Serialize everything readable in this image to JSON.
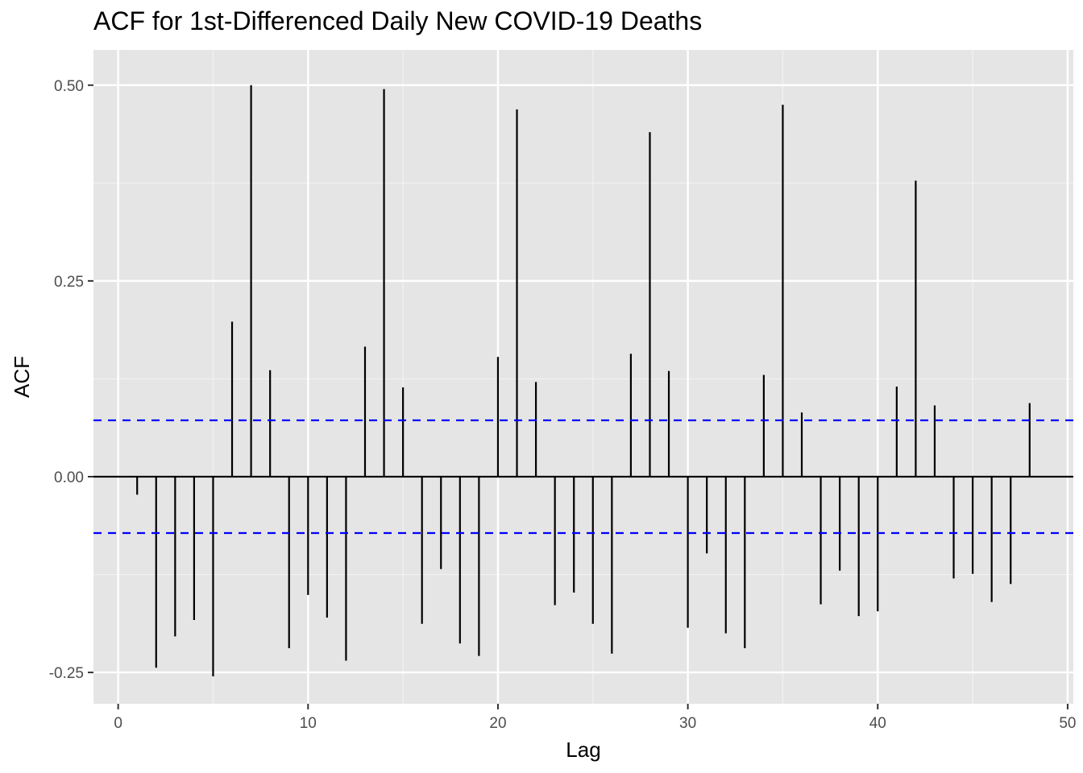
{
  "chart_data": {
    "type": "bar",
    "title": "ACF for 1st-Differenced Daily New COVID-19 Deaths",
    "xlabel": "Lag",
    "ylabel": "ACF",
    "xlim": [
      -1.3,
      50.3
    ],
    "ylim": [
      -0.29,
      0.545
    ],
    "x_ticks": [
      0,
      10,
      20,
      30,
      40,
      50
    ],
    "x_tick_labels": [
      "0",
      "10",
      "20",
      "30",
      "40",
      "50"
    ],
    "y_ticks": [
      -0.25,
      0.0,
      0.25,
      0.5
    ],
    "y_tick_labels": [
      "-0.25",
      "0.00",
      "0.25",
      "0.50"
    ],
    "y_minor_ticks": [
      -0.125,
      0.125,
      0.375
    ],
    "x_minor_ticks": [
      5,
      15,
      25,
      35,
      45
    ],
    "grid": true,
    "confidence_bound": 0.072,
    "confidence_color": "#0000ff",
    "panel_background": "#e5e5e5",
    "bar_color": "#000000",
    "x": [
      1,
      2,
      3,
      4,
      5,
      6,
      7,
      8,
      9,
      10,
      11,
      12,
      13,
      14,
      15,
      16,
      17,
      18,
      19,
      20,
      21,
      22,
      23,
      24,
      25,
      26,
      27,
      28,
      29,
      30,
      31,
      32,
      33,
      34,
      35,
      36,
      37,
      38,
      39,
      40,
      41,
      42,
      43,
      44,
      45,
      46,
      47,
      48
    ],
    "values": [
      -0.023,
      -0.244,
      -0.204,
      -0.183,
      -0.255,
      0.198,
      0.5,
      0.136,
      -0.219,
      -0.151,
      -0.18,
      -0.235,
      0.166,
      0.495,
      0.114,
      -0.188,
      -0.118,
      -0.213,
      -0.229,
      0.153,
      0.469,
      0.121,
      -0.164,
      -0.148,
      -0.188,
      -0.226,
      0.157,
      0.44,
      0.135,
      -0.193,
      -0.098,
      -0.2,
      -0.219,
      0.13,
      0.475,
      0.082,
      -0.163,
      -0.12,
      -0.178,
      -0.172,
      0.115,
      0.378,
      0.091,
      -0.13,
      -0.124,
      -0.16,
      -0.137,
      0.094
    ]
  }
}
